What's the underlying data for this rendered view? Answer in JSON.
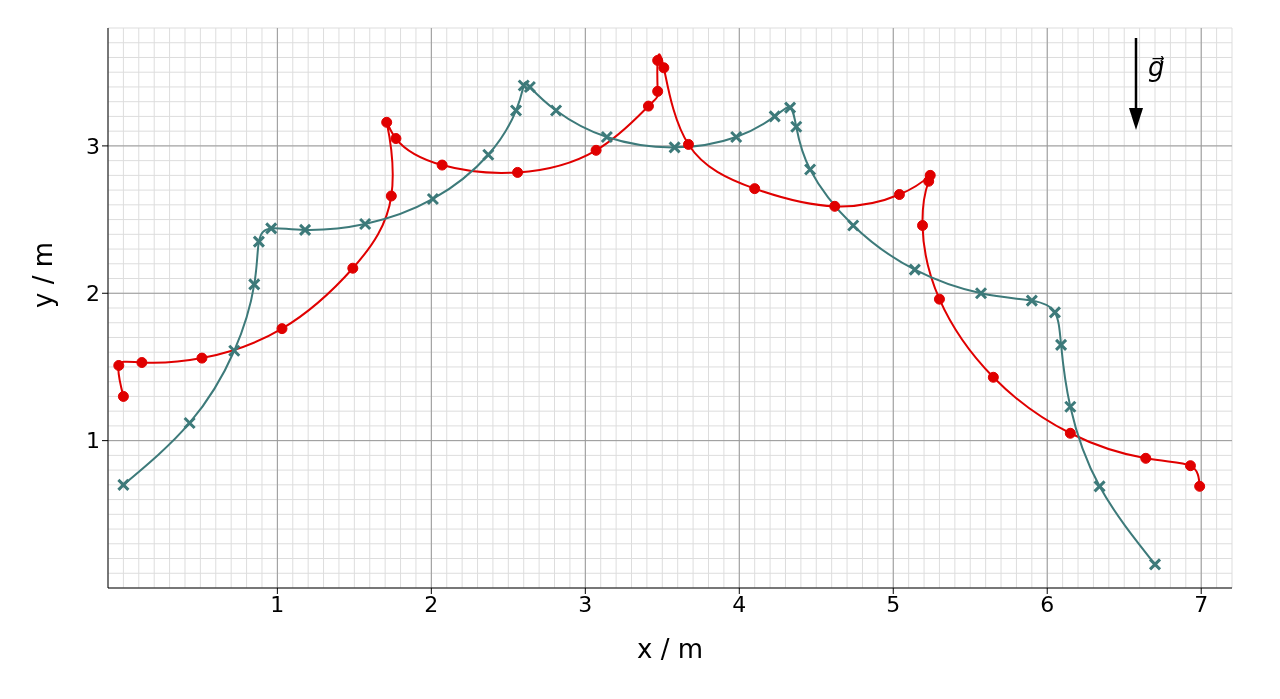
{
  "chart_data": {
    "type": "line",
    "xlabel": "x / m",
    "ylabel": "y / m",
    "xlim": [
      -0.1,
      7.2
    ],
    "ylim": [
      0,
      3.8
    ],
    "xticks": [
      1,
      2,
      3,
      4,
      5,
      6,
      7
    ],
    "yticks": [
      1,
      2,
      3
    ],
    "grid": true,
    "legend": false,
    "annotations": [
      "g⃗"
    ],
    "series": [
      {
        "color": "#e00000",
        "marker": "circle",
        "x": [
          0.0,
          -0.03,
          0.12,
          0.51,
          1.03,
          1.49,
          1.74,
          1.71,
          1.77,
          2.07,
          2.56,
          3.07,
          3.41,
          3.47,
          3.47,
          3.51,
          3.67,
          4.1,
          4.62,
          5.04,
          5.24,
          5.23,
          5.19,
          5.3,
          5.65,
          6.15,
          6.64,
          6.93,
          6.99
        ],
        "values": [
          1.3,
          1.51,
          1.53,
          1.56,
          1.76,
          2.17,
          2.66,
          3.16,
          3.05,
          2.87,
          2.82,
          2.97,
          3.27,
          3.37,
          3.58,
          3.53,
          3.01,
          2.71,
          2.59,
          2.67,
          2.8,
          2.76,
          2.46,
          1.96,
          1.43,
          1.05,
          0.88,
          0.83,
          0.69
        ]
      },
      {
        "color": "#3d7a7a",
        "marker": "cross",
        "x": [
          0.0,
          0.43,
          0.72,
          0.85,
          0.88,
          0.96,
          1.18,
          1.57,
          2.01,
          2.37,
          2.55,
          2.6,
          2.64,
          2.81,
          3.14,
          3.58,
          3.98,
          4.23,
          4.33,
          4.37,
          4.46,
          4.74,
          5.14,
          5.57,
          5.9,
          6.05,
          6.09,
          6.15,
          6.34,
          6.7
        ],
        "values": [
          0.7,
          1.12,
          1.61,
          2.06,
          2.35,
          2.44,
          2.43,
          2.47,
          2.64,
          2.94,
          3.24,
          3.41,
          3.4,
          3.24,
          3.06,
          2.99,
          3.06,
          3.2,
          3.26,
          3.13,
          2.84,
          2.46,
          2.16,
          2.0,
          1.95,
          1.87,
          1.65,
          1.23,
          0.69,
          0.16
        ]
      }
    ]
  }
}
